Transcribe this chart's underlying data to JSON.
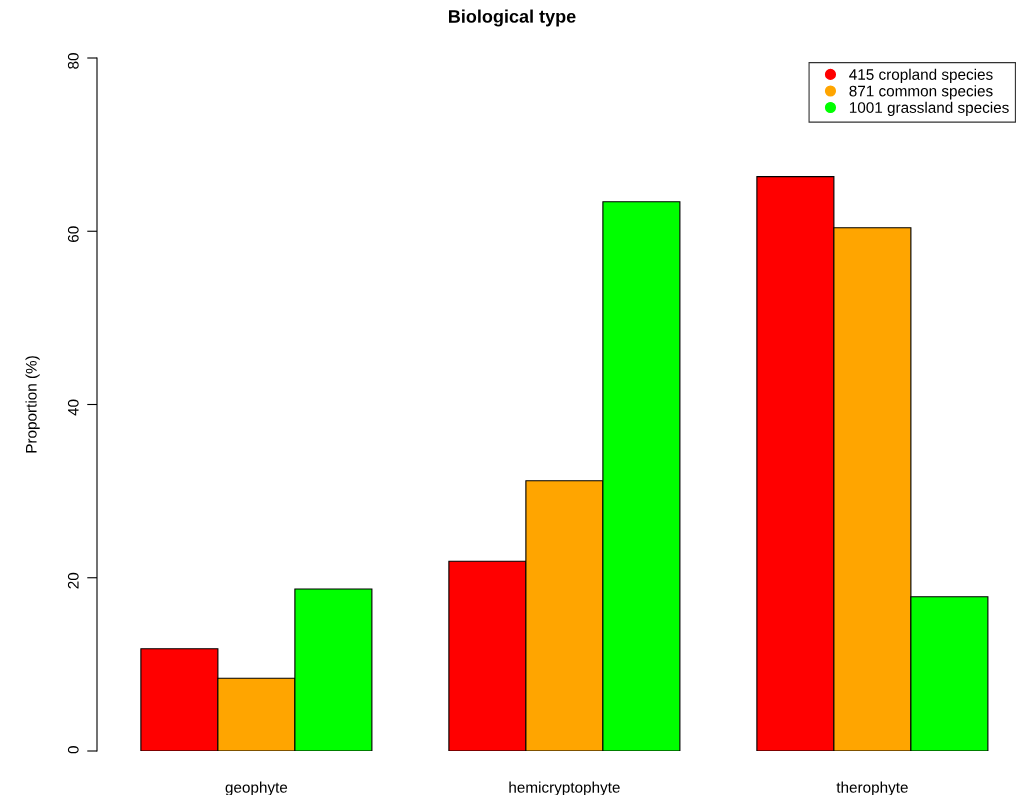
{
  "chart_data": {
    "type": "bar",
    "title": "Biological type",
    "ylabel": "Proportion (%)",
    "categories": [
      "geophyte",
      "hemicryptophyte",
      "therophyte"
    ],
    "series": [
      {
        "name": "415 cropland species",
        "color": "#ff0000",
        "values": [
          11.8,
          21.9,
          66.3
        ]
      },
      {
        "name": "871 common species",
        "color": "#ffa500",
        "values": [
          8.4,
          31.2,
          60.4
        ]
      },
      {
        "name": "1001 grassland species",
        "color": "#00ff00",
        "values": [
          18.7,
          63.4,
          17.8
        ]
      }
    ],
    "ylim": [
      0,
      80
    ],
    "yticks": [
      0,
      20,
      40,
      60,
      80
    ],
    "legend": "top right",
    "grid": false
  }
}
